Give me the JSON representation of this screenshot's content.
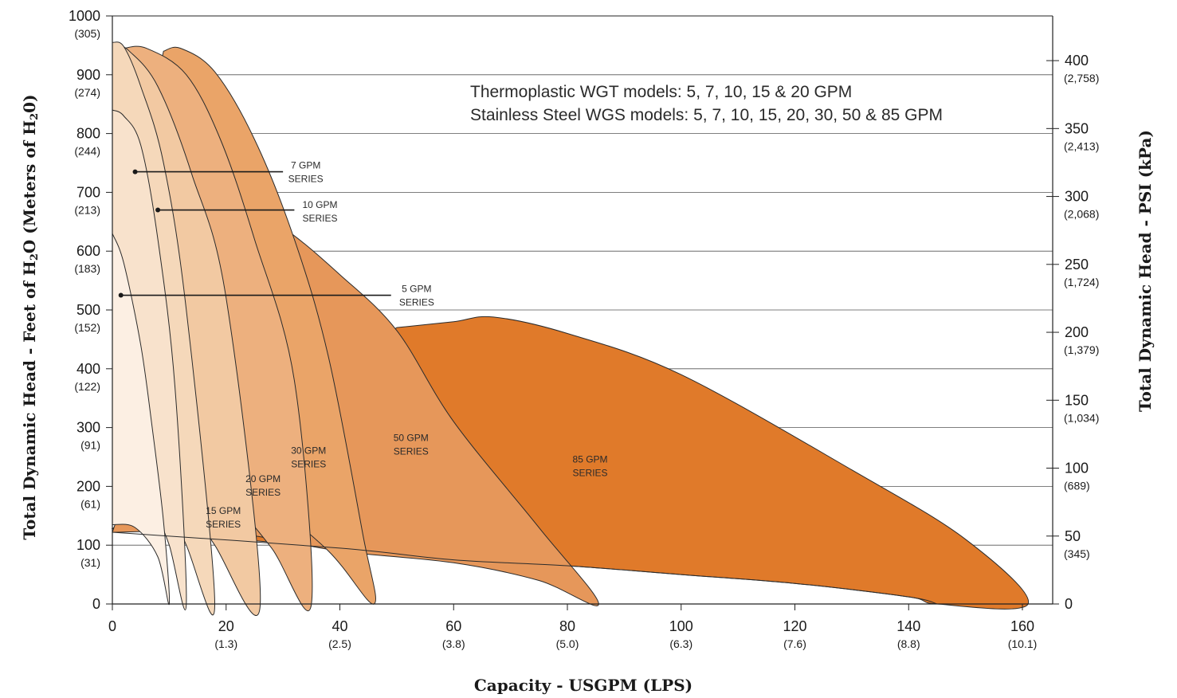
{
  "chart_data": {
    "type": "area",
    "xlabel": "Capacity - USGPM (LPS)",
    "ylabel": {
      "left_prefix": "Total Dynamic Head - Feet of H",
      "left_sub1": "2",
      "left_mid": "O (Meters of H",
      "left_sub2": "2",
      "left_suffix": "0)",
      "right": "Total Dynamic Head - PSI (kPa)"
    },
    "annotation": [
      "Thermoplastic WGT models: 5, 7, 10, 15 & 20 GPM",
      "Stainless Steel WGS models: 5, 7, 10, 15, 20, 30, 50 & 85 GPM"
    ],
    "xlim": [
      0,
      165
    ],
    "ylim": [
      0,
      1000
    ],
    "x_ticks": [
      {
        "v": 0,
        "label": "0",
        "sub": ""
      },
      {
        "v": 20,
        "label": "20",
        "sub": "(1.3)"
      },
      {
        "v": 40,
        "label": "40",
        "sub": "(2.5)"
      },
      {
        "v": 60,
        "label": "60",
        "sub": "(3.8)"
      },
      {
        "v": 80,
        "label": "80",
        "sub": "(5.0)"
      },
      {
        "v": 100,
        "label": "100",
        "sub": "(6.3)"
      },
      {
        "v": 120,
        "label": "120",
        "sub": "(7.6)"
      },
      {
        "v": 140,
        "label": "140",
        "sub": "(8.8)"
      },
      {
        "v": 160,
        "label": "160",
        "sub": "(10.1)"
      }
    ],
    "y_ticks_left": [
      {
        "v": 0,
        "label": "0",
        "sub": ""
      },
      {
        "v": 100,
        "label": "100",
        "sub": "(31)"
      },
      {
        "v": 200,
        "label": "200",
        "sub": "(61)"
      },
      {
        "v": 300,
        "label": "300",
        "sub": "(91)"
      },
      {
        "v": 400,
        "label": "400",
        "sub": "(122)"
      },
      {
        "v": 500,
        "label": "500",
        "sub": "(152)"
      },
      {
        "v": 600,
        "label": "600",
        "sub": "(183)"
      },
      {
        "v": 700,
        "label": "700",
        "sub": "(213)"
      },
      {
        "v": 800,
        "label": "800",
        "sub": "(244)"
      },
      {
        "v": 900,
        "label": "900",
        "sub": "(274)"
      },
      {
        "v": 1000,
        "label": "1000",
        "sub": "(305)"
      }
    ],
    "y_ticks_right": [
      {
        "v": 0,
        "label": "0",
        "sub": ""
      },
      {
        "v": 50,
        "label": "50",
        "sub": "(345)"
      },
      {
        "v": 100,
        "label": "100",
        "sub": "(689)"
      },
      {
        "v": 150,
        "label": "150",
        "sub": "(1,034)"
      },
      {
        "v": 200,
        "label": "200",
        "sub": "(1,379)"
      },
      {
        "v": 250,
        "label": "250",
        "sub": "(1,724)"
      },
      {
        "v": 300,
        "label": "300",
        "sub": "(2,068)"
      },
      {
        "v": 350,
        "label": "350",
        "sub": "(2,413)"
      },
      {
        "v": 400,
        "label": "400",
        "sub": "(2,758)"
      }
    ],
    "right_axis_scale": "PSI = feet / 2.31",
    "grid": "horizontal",
    "series": [
      {
        "name": "85 GPM SERIES",
        "color": "#e07a2a",
        "label_at": [
          84,
          235
        ],
        "outline": [
          [
            0,
            128
          ],
          [
            40,
            95
          ],
          [
            60,
            75
          ],
          [
            80,
            65
          ],
          [
            100,
            50
          ],
          [
            120,
            35
          ],
          [
            140,
            12
          ],
          [
            145,
            0
          ],
          [
            161,
            0
          ],
          [
            150,
            110
          ],
          [
            130,
            228
          ],
          [
            100,
            390
          ],
          [
            80,
            460
          ],
          [
            67,
            488
          ],
          [
            60,
            480
          ],
          [
            50,
            470
          ]
        ],
        "floor_curve": [
          [
            0,
            122
          ],
          [
            40,
            95
          ],
          [
            60,
            75
          ],
          [
            80,
            65
          ],
          [
            100,
            50
          ],
          [
            120,
            35
          ],
          [
            140,
            12
          ],
          [
            145,
            0
          ]
        ]
      },
      {
        "name": "50 GPM SERIES",
        "color": "#e6975a",
        "label_at": [
          52.5,
          272
        ],
        "outline": [
          [
            0,
            122
          ],
          [
            20,
            122
          ],
          [
            40,
            90
          ],
          [
            60,
            70
          ],
          [
            75,
            40
          ],
          [
            85.5,
            0
          ],
          [
            75,
            130
          ],
          [
            60,
            310
          ],
          [
            50,
            465
          ],
          [
            40,
            560
          ],
          [
            30,
            640
          ],
          [
            20,
            690
          ]
        ]
      },
      {
        "name": "30 GPM SERIES",
        "color": "#eaa468",
        "label_at": [
          34.5,
          250
        ],
        "outline": [
          [
            9,
            940
          ],
          [
            12,
            945
          ],
          [
            18,
            905
          ],
          [
            25,
            790
          ],
          [
            32,
            620
          ],
          [
            38,
            420
          ],
          [
            44,
            120
          ],
          [
            46,
            0
          ],
          [
            38,
            90
          ],
          [
            24,
            210
          ],
          [
            16,
            310
          ],
          [
            8,
            420
          ],
          [
            0,
            540
          ]
        ]
      },
      {
        "name": "20 GPM SERIES",
        "color": "#edb07e",
        "label_at": [
          26.5,
          202
        ],
        "outline": [
          [
            2,
            945
          ],
          [
            6,
            945
          ],
          [
            13,
            900
          ],
          [
            19,
            790
          ],
          [
            25,
            620
          ],
          [
            32,
            380
          ],
          [
            35,
            0
          ],
          [
            28,
            95
          ],
          [
            20,
            190
          ],
          [
            14,
            260
          ],
          [
            6,
            380
          ],
          [
            0,
            470
          ]
        ]
      },
      {
        "name": "15 GPM SERIES",
        "color": "#f2c9a2",
        "label_at": [
          19.5,
          148
        ],
        "outline": [
          [
            0,
            955
          ],
          [
            3,
            940
          ],
          [
            8,
            880
          ],
          [
            14,
            730
          ],
          [
            20,
            520
          ],
          [
            26,
            0
          ],
          [
            18,
            100
          ],
          [
            12,
            200
          ],
          [
            5,
            310
          ],
          [
            0,
            380
          ]
        ]
      },
      {
        "name": "10 GPM SERIES",
        "color": "#f5d8ba",
        "label_at": [
          36.5,
          668
        ],
        "outline": [
          [
            0,
            955
          ],
          [
            2,
            948
          ],
          [
            5,
            880
          ],
          [
            9,
            750
          ],
          [
            13,
            500
          ],
          [
            18,
            0
          ],
          [
            13,
            100
          ],
          [
            8,
            220
          ],
          [
            4,
            320
          ],
          [
            0,
            380
          ]
        ]
      },
      {
        "name": "7 GPM SERIES",
        "color": "#f8e2cc",
        "label_at": [
          34,
          735
        ],
        "outline": [
          [
            0,
            840
          ],
          [
            2,
            830
          ],
          [
            5,
            780
          ],
          [
            8,
            620
          ],
          [
            11,
            370
          ],
          [
            13,
            0
          ],
          [
            10,
            100
          ],
          [
            7,
            170
          ],
          [
            3,
            250
          ],
          [
            0,
            265
          ]
        ]
      },
      {
        "name": "5 GPM SERIES",
        "color": "#fcefe3",
        "label_at": [
          53.5,
          525
        ],
        "outline": [
          [
            0,
            630
          ],
          [
            2,
            580
          ],
          [
            5,
            440
          ],
          [
            7,
            300
          ],
          [
            9,
            140
          ],
          [
            10,
            0
          ],
          [
            8,
            80
          ],
          [
            4,
            130
          ],
          [
            0,
            135
          ]
        ]
      }
    ],
    "callouts": [
      {
        "target": "7 GPM SERIES",
        "from": [
          4,
          735
        ],
        "to": [
          30,
          735
        ]
      },
      {
        "target": "10 GPM SERIES",
        "from": [
          8,
          670
        ],
        "to": [
          32,
          670
        ]
      },
      {
        "target": "5 GPM SERIES",
        "from": [
          1.5,
          525
        ],
        "to": [
          49,
          525
        ]
      }
    ]
  }
}
